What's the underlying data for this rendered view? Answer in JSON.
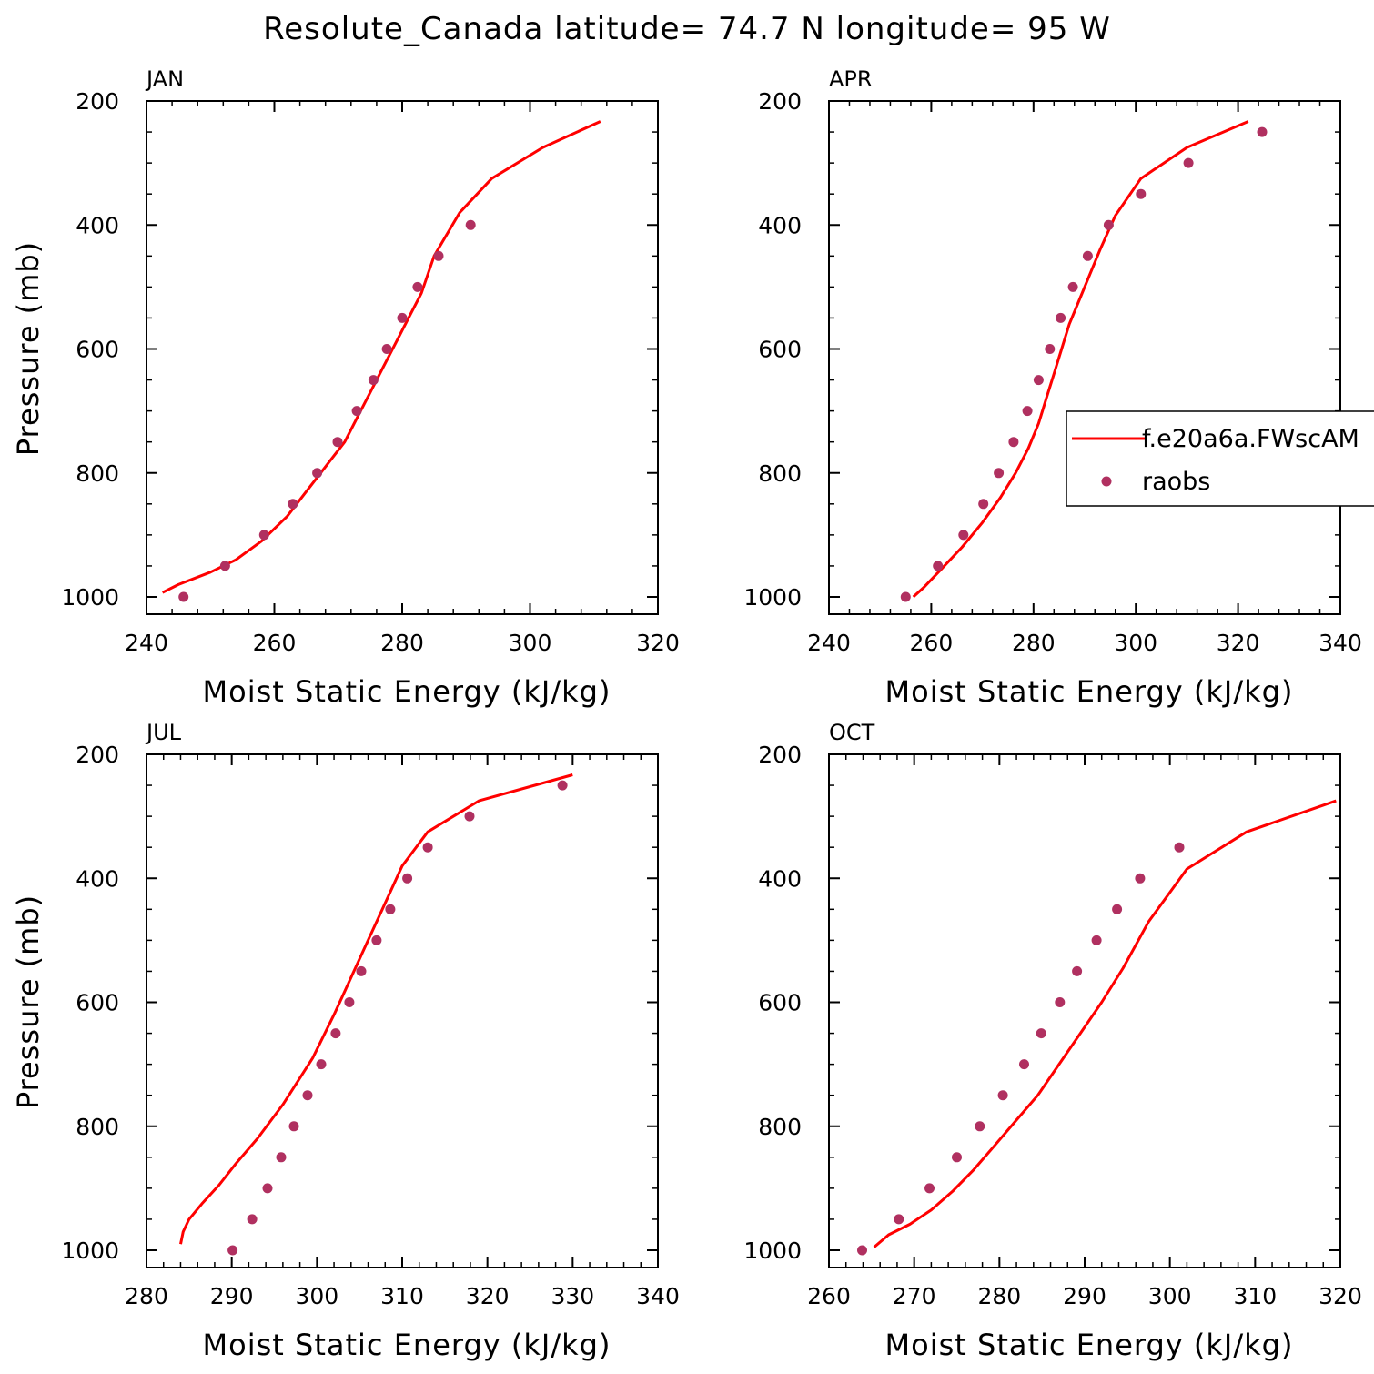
{
  "page_title": "Resolute_Canada  latitude= 74.7 N longitude= 95 W",
  "colors": {
    "model_line": "#ff0000",
    "raobs_marker": "#b03060",
    "axes": "#000000"
  },
  "legend": {
    "entries": [
      "f.e20a6a.FWscAM",
      "raobs"
    ]
  },
  "chart_data": [
    {
      "type": "line",
      "panel": "JAN",
      "xlabel": "Moist Static Energy (kJ/kg)",
      "ylabel": "Pressure (mb)",
      "xlim": [
        240,
        320
      ],
      "ylim": [
        1000,
        200
      ],
      "xticks": [
        240,
        260,
        280,
        300,
        320
      ],
      "yticks": [
        200,
        400,
        600,
        800,
        1000
      ],
      "series": [
        {
          "name": "f.e20a6a.FWscAM",
          "x": [
            242.5,
            245,
            250,
            254,
            258,
            262,
            265,
            268,
            271,
            273,
            275,
            277,
            279,
            281,
            283,
            285,
            289,
            294,
            302,
            311
          ],
          "y": [
            993,
            980,
            960,
            940,
            910,
            870,
            830,
            790,
            750,
            710,
            670,
            630,
            590,
            550,
            510,
            450,
            380,
            325,
            275,
            233
          ]
        },
        {
          "name": "raobs",
          "x": [
            245.8,
            252.3,
            258.4,
            262.9,
            266.7,
            269.9,
            272.9,
            275.5,
            277.6,
            280,
            282.4,
            285.7,
            290.7
          ],
          "y": [
            1000,
            950,
            900,
            850,
            800,
            750,
            700,
            650,
            600,
            550,
            500,
            450,
            400
          ]
        }
      ]
    },
    {
      "type": "line",
      "panel": "APR",
      "xlabel": "Moist Static Energy (kJ/kg)",
      "ylabel": "",
      "xlim": [
        240,
        340
      ],
      "ylim": [
        1000,
        200
      ],
      "xticks": [
        240,
        260,
        280,
        300,
        320,
        340
      ],
      "yticks": [
        200,
        400,
        600,
        800,
        1000
      ],
      "series": [
        {
          "name": "f.e20a6a.FWscAM",
          "x": [
            256.5,
            258.5,
            262,
            266,
            270,
            273.5,
            276.5,
            279,
            281,
            282.5,
            284,
            285.5,
            287,
            289,
            291,
            293,
            296,
            301,
            310,
            322
          ],
          "y": [
            1000,
            985,
            955,
            920,
            880,
            840,
            800,
            760,
            720,
            680,
            640,
            600,
            560,
            520,
            480,
            440,
            385,
            325,
            275,
            233
          ]
        },
        {
          "name": "raobs",
          "x": [
            255,
            261.3,
            266.3,
            270.2,
            273.2,
            276.1,
            278.8,
            281,
            283.2,
            285.3,
            287.7,
            290.6,
            294.7,
            301,
            310.3,
            324.7
          ],
          "y": [
            1000,
            950,
            900,
            850,
            800,
            750,
            700,
            650,
            600,
            550,
            500,
            450,
            400,
            350,
            300,
            250
          ]
        }
      ]
    },
    {
      "type": "line",
      "panel": "JUL",
      "xlabel": "Moist Static Energy (kJ/kg)",
      "ylabel": "Pressure (mb)",
      "xlim": [
        280,
        340
      ],
      "ylim": [
        1000,
        200
      ],
      "xticks": [
        280,
        290,
        300,
        310,
        320,
        330,
        340
      ],
      "yticks": [
        200,
        400,
        600,
        800,
        1000
      ],
      "series": [
        {
          "name": "f.e20a6a.FWscAM",
          "x": [
            284,
            284.3,
            285,
            286.5,
            288.5,
            290.5,
            293,
            296,
            299.5,
            302,
            304,
            306,
            308,
            310,
            313,
            319,
            330
          ],
          "y": [
            990,
            970,
            950,
            925,
            895,
            860,
            820,
            765,
            690,
            620,
            560,
            500,
            440,
            380,
            325,
            275,
            233
          ]
        },
        {
          "name": "raobs",
          "x": [
            290.1,
            292.4,
            294.2,
            295.8,
            297.3,
            298.9,
            300.5,
            302.2,
            303.8,
            305.2,
            307,
            308.6,
            310.6,
            313,
            317.9,
            328.8
          ],
          "y": [
            1000,
            950,
            900,
            850,
            800,
            750,
            700,
            650,
            600,
            550,
            500,
            450,
            400,
            350,
            300,
            250
          ]
        }
      ]
    },
    {
      "type": "line",
      "panel": "OCT",
      "xlabel": "Moist Static Energy (kJ/kg)",
      "ylabel": "",
      "xlim": [
        260,
        320
      ],
      "ylim": [
        1000,
        200
      ],
      "xticks": [
        260,
        270,
        280,
        290,
        300,
        310,
        320
      ],
      "yticks": [
        200,
        400,
        600,
        800,
        1000
      ],
      "series": [
        {
          "name": "f.e20a6a.FWscAM",
          "x": [
            265.3,
            267,
            269.5,
            272,
            274.5,
            277,
            279.5,
            282,
            284.5,
            287,
            289.5,
            292,
            294.5,
            297.5,
            302,
            309,
            319.5
          ],
          "y": [
            995,
            975,
            958,
            935,
            905,
            870,
            830,
            790,
            750,
            700,
            650,
            600,
            545,
            470,
            385,
            325,
            275
          ]
        },
        {
          "name": "raobs",
          "x": [
            263.9,
            268.2,
            271.8,
            275,
            277.7,
            280.4,
            282.9,
            284.9,
            287.1,
            289.1,
            291.4,
            293.8,
            296.5,
            301.1
          ],
          "y": [
            1000,
            950,
            900,
            850,
            800,
            750,
            700,
            650,
            600,
            550,
            500,
            450,
            400,
            350
          ]
        }
      ]
    }
  ]
}
